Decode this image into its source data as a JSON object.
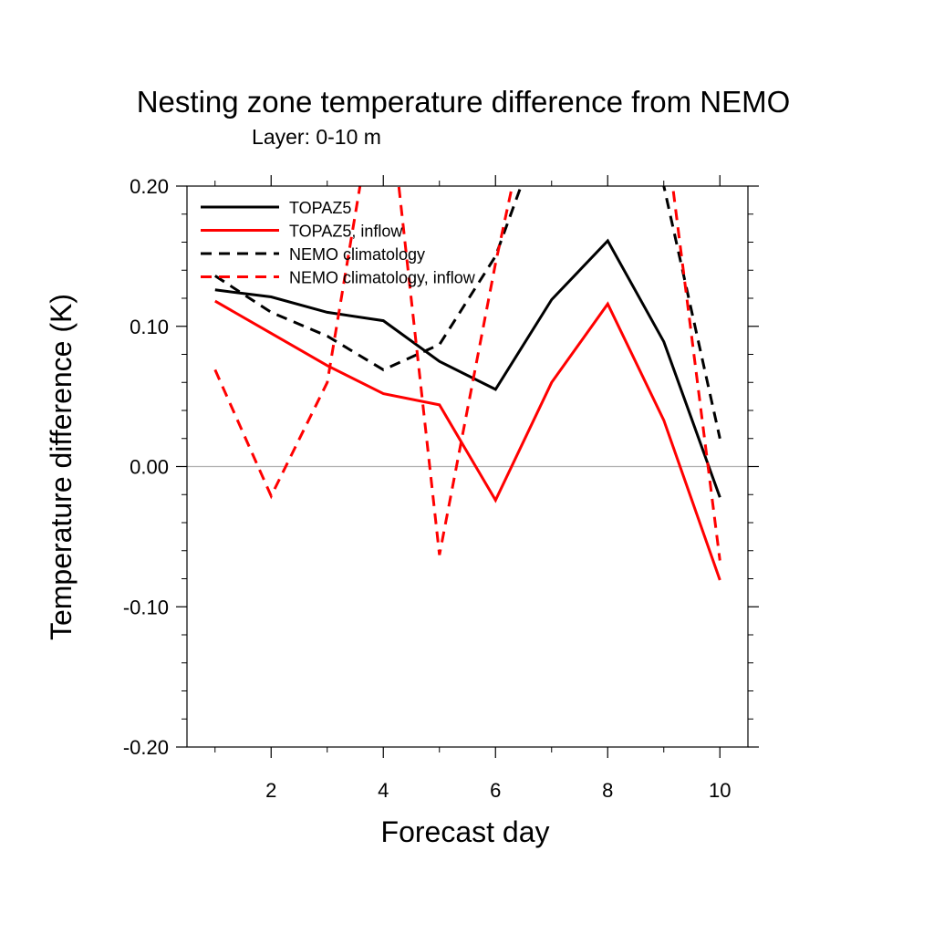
{
  "chart_data": {
    "type": "line",
    "title": "Nesting zone temperature difference from NEMO",
    "subtitle": "Layer: 0-10 m",
    "xlabel": "Forecast day",
    "ylabel": "Temperature difference (K)",
    "xlim": [
      0.5,
      10.5
    ],
    "ylim": [
      -0.2,
      0.2
    ],
    "xticks": [
      2,
      4,
      6,
      8,
      10
    ],
    "xtick_labels": [
      "2",
      "4",
      "6",
      "8",
      "10"
    ],
    "yticks": [
      -0.2,
      -0.1,
      0.0,
      0.1,
      0.2
    ],
    "ytick_labels": [
      "-0.20",
      "-0.10",
      "0.00",
      "0.10",
      "0.20"
    ],
    "reference_line": 0.0,
    "legend_position": "top-left",
    "x": [
      1,
      2,
      3,
      4,
      5,
      6,
      7,
      8,
      9,
      10
    ],
    "series": [
      {
        "name": "TOPAZ5",
        "color": "#000000",
        "dash": "solid",
        "values": [
          0.126,
          0.121,
          0.11,
          0.104,
          0.075,
          0.055,
          0.119,
          0.161,
          0.089,
          -0.022
        ]
      },
      {
        "name": "TOPAZ5, inflow",
        "color": "#ff0000",
        "dash": "solid",
        "values": [
          0.118,
          0.095,
          0.072,
          0.052,
          0.044,
          -0.024,
          0.06,
          0.116,
          0.033,
          -0.081
        ]
      },
      {
        "name": "NEMO climatology",
        "color": "#000000",
        "dash": "dashed",
        "values": [
          0.136,
          0.11,
          0.093,
          0.069,
          0.087,
          0.15,
          0.26,
          0.3,
          0.2,
          0.02
        ]
      },
      {
        "name": "NEMO climatology, inflow",
        "color": "#ff0000",
        "dash": "dashed",
        "values": [
          0.069,
          -0.021,
          0.06,
          0.3,
          -0.063,
          0.145,
          0.33,
          0.35,
          0.25,
          -0.067
        ]
      }
    ]
  }
}
